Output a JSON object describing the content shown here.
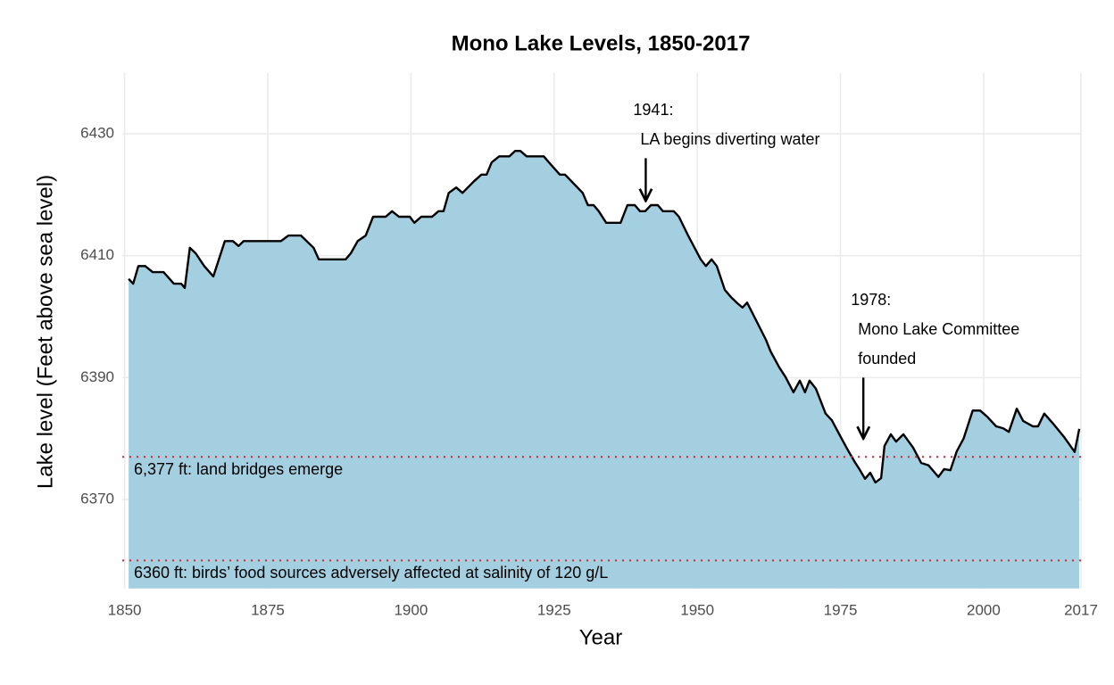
{
  "chart_data": {
    "type": "area",
    "title": "Mono Lake Levels, 1850-2017",
    "x_label": "Year",
    "y_label": "Lake level (Feet above sea level)",
    "x": [
      1850.7,
      1851.5,
      1852.4,
      1853.6,
      1854.9,
      1856.8,
      1858.6,
      1859.9,
      1860.5,
      1861.4,
      1862.4,
      1863.9,
      1865.5,
      1867.5,
      1868.9,
      1869.9,
      1870.8,
      1877.3,
      1878.6,
      1880.8,
      1883.0,
      1883.9,
      1888.6,
      1889.5,
      1890.7,
      1892.1,
      1893.4,
      1895.6,
      1896.7,
      1897.9,
      1899.8,
      1900.6,
      1901.8,
      1903.7,
      1904.8,
      1905.7,
      1906.6,
      1907.9,
      1909.0,
      1911.0,
      1912.3,
      1913.2,
      1914.1,
      1915.4,
      1917.2,
      1918.2,
      1919.1,
      1920.2,
      1923.2,
      1924.1,
      1926.0,
      1926.9,
      1930.0,
      1930.9,
      1931.9,
      1932.8,
      1934.1,
      1936.6,
      1937.8,
      1939.1,
      1940.0,
      1940.9,
      1941.9,
      1943.1,
      1944.0,
      1945.9,
      1946.8,
      1948.4,
      1950.6,
      1951.5,
      1952.5,
      1953.4,
      1954.8,
      1955.9,
      1957.0,
      1957.9,
      1958.7,
      1960.1,
      1962.0,
      1962.8,
      1964.3,
      1965.4,
      1966.8,
      1967.9,
      1968.8,
      1969.6,
      1970.7,
      1972.4,
      1973.5,
      1975.2,
      1976.3,
      1977.6,
      1978.3,
      1979.3,
      1980.2,
      1981.1,
      1982.1,
      1982.7,
      1983.8,
      1984.7,
      1986.0,
      1987.7,
      1989.1,
      1990.4,
      1991.3,
      1992.1,
      1993.1,
      1994.2,
      1995.3,
      1996.5,
      1998.1,
      1999.4,
      2000.6,
      2002.2,
      2003.4,
      2004.4,
      2005.8,
      2006.9,
      2008.6,
      2009.5,
      2010.6,
      2012.0,
      2014.0,
      2015.9,
      2016.7
    ],
    "values": [
      6406.2,
      6405.4,
      6408.3,
      6408.3,
      6407.3,
      6407.3,
      6405.4,
      6405.4,
      6404.7,
      6411.3,
      6410.4,
      6408.3,
      6406.6,
      6412.4,
      6412.4,
      6411.6,
      6412.4,
      6412.4,
      6413.3,
      6413.3,
      6411.3,
      6409.4,
      6409.4,
      6410.4,
      6412.4,
      6413.3,
      6416.4,
      6416.4,
      6417.3,
      6416.4,
      6416.4,
      6415.4,
      6416.4,
      6416.4,
      6417.3,
      6417.3,
      6420.3,
      6421.2,
      6420.3,
      6422.2,
      6423.3,
      6423.3,
      6425.3,
      6426.3,
      6426.3,
      6427.2,
      6427.2,
      6426.3,
      6426.3,
      6425.3,
      6423.3,
      6423.3,
      6420.3,
      6418.3,
      6418.3,
      6417.3,
      6415.4,
      6415.4,
      6418.3,
      6418.3,
      6417.3,
      6417.3,
      6418.3,
      6418.3,
      6417.3,
      6417.3,
      6416.4,
      6413.3,
      6409.4,
      6408.3,
      6409.4,
      6408.3,
      6404.4,
      6403.2,
      6402.2,
      6401.5,
      6402.3,
      6399.7,
      6396.2,
      6394.3,
      6391.7,
      6390.1,
      6387.6,
      6389.5,
      6387.6,
      6389.5,
      6388.2,
      6384.1,
      6383.0,
      6380.0,
      6378.1,
      6376.0,
      6375.0,
      6373.4,
      6374.4,
      6372.8,
      6373.5,
      6378.8,
      6380.7,
      6379.5,
      6380.7,
      6378.5,
      6376.0,
      6375.6,
      6374.6,
      6373.7,
      6375.0,
      6374.8,
      6377.9,
      6380.0,
      6384.6,
      6384.6,
      6383.6,
      6382.0,
      6381.7,
      6381.1,
      6384.9,
      6382.9,
      6382.0,
      6382.0,
      6384.1,
      6382.6,
      6380.3,
      6377.8,
      6381.6
    ],
    "fill_color": "#a3cfe0",
    "line_color": "#000000",
    "xlim": [
      1850,
      2017
    ],
    "ylim": [
      6355.4,
      6440
    ],
    "xticks": [
      1850,
      1875,
      1900,
      1925,
      1950,
      1975,
      2000,
      2017
    ],
    "yticks": [
      6370,
      6390,
      6410,
      6430
    ],
    "grid": true,
    "reference_lines": [
      {
        "y": 6377,
        "label": "6,377 ft: land bridges emerge",
        "color": "#e8202a"
      },
      {
        "y": 6360,
        "label": "6360 ft: birds’ food sources adversely affected at salinity of 120 g/L",
        "color": "#e8202a"
      }
    ],
    "annotations": [
      {
        "lines": [
          "1941:",
          "LA begins diverting water"
        ],
        "x": 1941,
        "y_start": 6426,
        "y_end": 6419
      },
      {
        "lines": [
          "1978:",
          "Mono Lake Committee",
          "founded"
        ],
        "x": 1979,
        "y_start": 6390,
        "y_end": 6380
      }
    ]
  }
}
